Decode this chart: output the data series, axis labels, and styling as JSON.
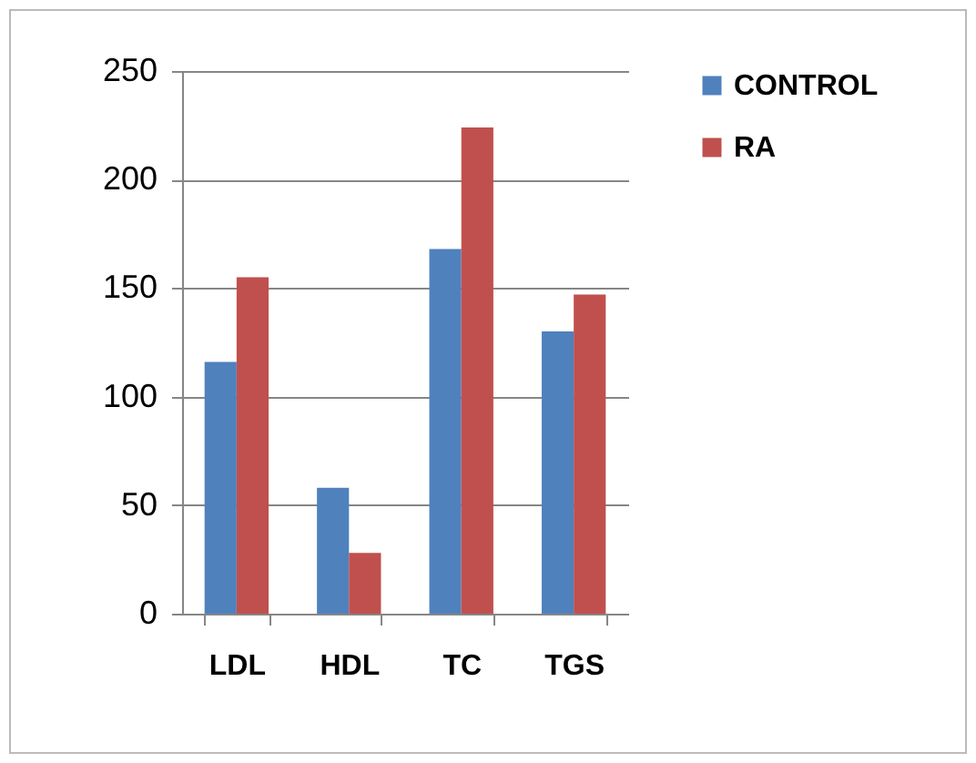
{
  "chart_data": {
    "type": "bar",
    "categories": [
      "LDL",
      "HDL",
      "TC",
      "TGS"
    ],
    "series": [
      {
        "name": "CONTROL",
        "color": "#4f81bd",
        "values": [
          116,
          58,
          168,
          130
        ]
      },
      {
        "name": "RA",
        "color": "#c0504d",
        "values": [
          155,
          28,
          224,
          147
        ]
      }
    ],
    "ylim": [
      0,
      250
    ],
    "yticks": [
      0,
      50,
      100,
      150,
      200,
      250
    ],
    "grid": "y",
    "legend": "right"
  }
}
